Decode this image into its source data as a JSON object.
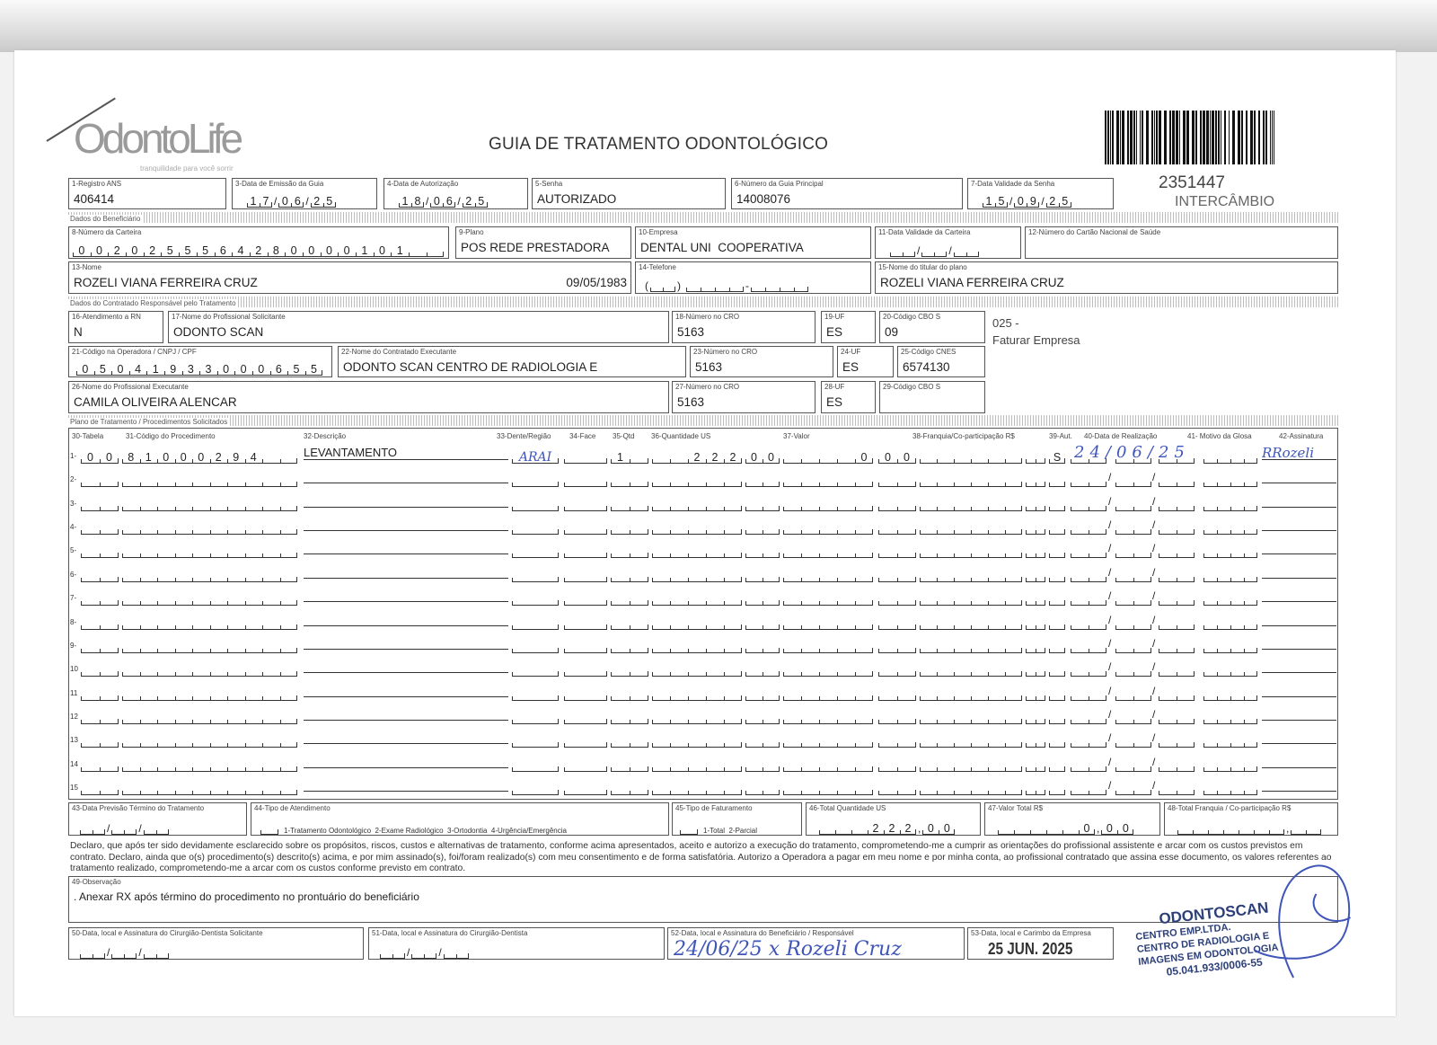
{
  "header": {
    "logo_text": "OdontoLife",
    "logo_tagline": "tranquilidade para você sorrir",
    "title": "GUIA DE TRATAMENTO ODONTOLÓGICO",
    "guia_numero": "2351447",
    "tipo": "INTERCÂMBIO"
  },
  "guia": {
    "registro_ans": {
      "label": "1-Registro ANS",
      "value": "406414"
    },
    "data_emissao": {
      "label": "3-Data de Emissão da Guia",
      "dd": "17",
      "mm": "06",
      "yy": "25"
    },
    "data_autorizacao": {
      "label": "4-Data de Autorização",
      "dd": "18",
      "mm": "06",
      "yy": "25"
    },
    "senha": {
      "label": "5-Senha",
      "value": "AUTORIZADO"
    },
    "guia_principal": {
      "label": "6-Número da Guia Principal",
      "value": "14008076"
    },
    "validade_senha": {
      "label": "7-Data Validade da Senha",
      "dd": "15",
      "mm": "09",
      "yy": "25"
    }
  },
  "sections": {
    "beneficiario": "Dados do Beneficiário",
    "contratado": "Dados do Contratado Responsável pelo Tratamento",
    "plano": "Plano de Tratamento / Procedimentos Solicitados"
  },
  "beneficiario": {
    "carteira": {
      "label": "8-Número da Carteira",
      "value": "0020255564280000101"
    },
    "plano": {
      "label": "9-Plano",
      "value": "POS REDE PRESTADORA"
    },
    "empresa": {
      "label": "10-Empresa",
      "value": "DENTAL UNI  COOPERATIVA"
    },
    "validade_carteira": {
      "label": "11-Data Validade da Carteira"
    },
    "cns": {
      "label": "12-Número do Cartão Nacional de Saúde",
      "value": ""
    },
    "nome": {
      "label": "13-Nome",
      "value": "ROZELI VIANA FERREIRA CRUZ",
      "nascimento": "09/05/1983"
    },
    "telefone": {
      "label": "14-Telefone"
    },
    "titular": {
      "label": "15-Nome do titular do plano",
      "value": "ROZELI VIANA FERREIRA CRUZ"
    }
  },
  "contratado": {
    "rn": {
      "label": "16-Atendimento a RN",
      "value": "N"
    },
    "solicitante": {
      "label": "17-Nome do Profissional Solicitante",
      "value": "ODONTO SCAN"
    },
    "cro_solic": {
      "label": "18-Número no CRO",
      "value": "5163"
    },
    "uf_solic": {
      "label": "19-UF",
      "value": "ES"
    },
    "cbo_solic": {
      "label": "20-Código CBO S",
      "value": "09"
    },
    "nota1": "025 -",
    "nota2": "Faturar Empresa",
    "cnpj": {
      "label": "21-Código na Operadora / CNPJ / CPF",
      "value": "05041933000655"
    },
    "executante": {
      "label": "22-Nome do Contratado Executante",
      "value": "ODONTO SCAN CENTRO DE RADIOLOGIA E"
    },
    "cro_exec": {
      "label": "23-Número no CRO",
      "value": "5163"
    },
    "uf_exec": {
      "label": "24-UF",
      "value": "ES"
    },
    "cnes": {
      "label": "25-Código CNES",
      "value": "6574130"
    },
    "prof_exec": {
      "label": "26-Nome do Profissional Executante",
      "value": "CAMILA OLIVEIRA ALENCAR"
    },
    "cro_prof": {
      "label": "27-Número no CRO",
      "value": "5163"
    },
    "uf_prof": {
      "label": "28-UF",
      "value": "ES"
    },
    "cbo_prof": {
      "label": "29-Código CBO S",
      "value": ""
    }
  },
  "procedimentos": {
    "headers": [
      "30-Tabela",
      "31-Código do Procedimento",
      "32-Descrição",
      "33-Dente/Região",
      "34-Face",
      "35-Qtd",
      "36-Quantidade US",
      "37-Valor",
      "38-Franquia/Co-participação R$",
      "39-Aut.",
      "40-Data de Realização",
      "41- Motivo da Glosa",
      "42-Assinatura"
    ],
    "rows": [
      {
        "num": "1-",
        "tabela": "00",
        "codigo": "81000294",
        "descricao": "LEVANTAMENTO",
        "dente": "ARAI",
        "face": "",
        "qtd": "1",
        "us_int": "222",
        "us_dec": "00",
        "valor_int": "0",
        "valor_dec": "00",
        "aut": "S",
        "data_realizacao": "24/06/25",
        "assinatura": "RRozeli"
      },
      {
        "num": "2-"
      },
      {
        "num": "3-"
      },
      {
        "num": "4-"
      },
      {
        "num": "5-"
      },
      {
        "num": "6-"
      },
      {
        "num": "7-"
      },
      {
        "num": "8-"
      },
      {
        "num": "9-"
      },
      {
        "num": "10"
      },
      {
        "num": "11"
      },
      {
        "num": "12"
      },
      {
        "num": "13"
      },
      {
        "num": "14"
      },
      {
        "num": "15"
      }
    ]
  },
  "totais": {
    "previsao": {
      "label": "43-Data Previsão Término do Tratamento"
    },
    "tipo_atendimento": {
      "label": "44-Tipo de Atendimento",
      "options": "1-Tratamento Odontológico  2-Exame Radiológico  3-Ortodontia  4-Urgência/Emergência"
    },
    "tipo_faturamento": {
      "label": "45-Tipo de Faturamento",
      "options": "1-Total  2-Parcial"
    },
    "qtd_us": {
      "label": "46-Total Quantidade US",
      "int": "222",
      "dec": "00"
    },
    "valor_total": {
      "label": "47-Valor Total R$",
      "int": "0",
      "dec": "00"
    },
    "franquia_total": {
      "label": "48-Total Franquia / Co-participação R$"
    }
  },
  "declaracao": "Declaro, que após ter sido devidamente esclarecido sobre os propósitos, riscos, custos e alternativas de tratamento, conforme acima apresentados, aceito e autorizo a execução do tratamento, comprometendo-me a cumprir as orientações do profissional assistente e arcar com os custos previstos em contrato. Declaro, ainda que o(s) procedimento(s) descrito(s) acima, e por mim assinado(s), foi/foram realizado(s) com meu consentimento e de forma satisfatória. Autorizo a Operadora a pagar em meu nome e por minha conta, ao profissional contratado que assina esse documento, os valores referentes ao tratamento realizado, comprometendo-me a arcar com os custos conforme previsto em contrato.",
  "observacao": {
    "label": "49-Observação",
    "value": ". Anexar RX após término do procedimento no prontuário do beneficiário"
  },
  "assinaturas": {
    "solicitante": {
      "label": "50-Data, local e Assinatura do Cirurgião-Dentista Solicitante"
    },
    "dentista": {
      "label": "51-Data, local e Assinatura do Cirurgião-Dentista"
    },
    "beneficiario": {
      "label": "52-Data, local e Assinatura do Beneficiário / Responsável",
      "handwritten": "24/06/25 x Rozeli Cruz"
    },
    "empresa": {
      "label": "53-Data, local e Carimbo da Empresa",
      "stamp_date": "25 JUN. 2025"
    }
  },
  "stamp": {
    "lines": [
      "ODONTOSCAN",
      "CENTRO EMP.LTDA.",
      "CENTRO DE RADIOLOGIA E",
      "IMAGENS EM ODONTOLOGIA",
      "05.041.933/0006-55"
    ]
  },
  "colors": {
    "ink": "#3f55b8",
    "stamp": "#2c3f78"
  }
}
